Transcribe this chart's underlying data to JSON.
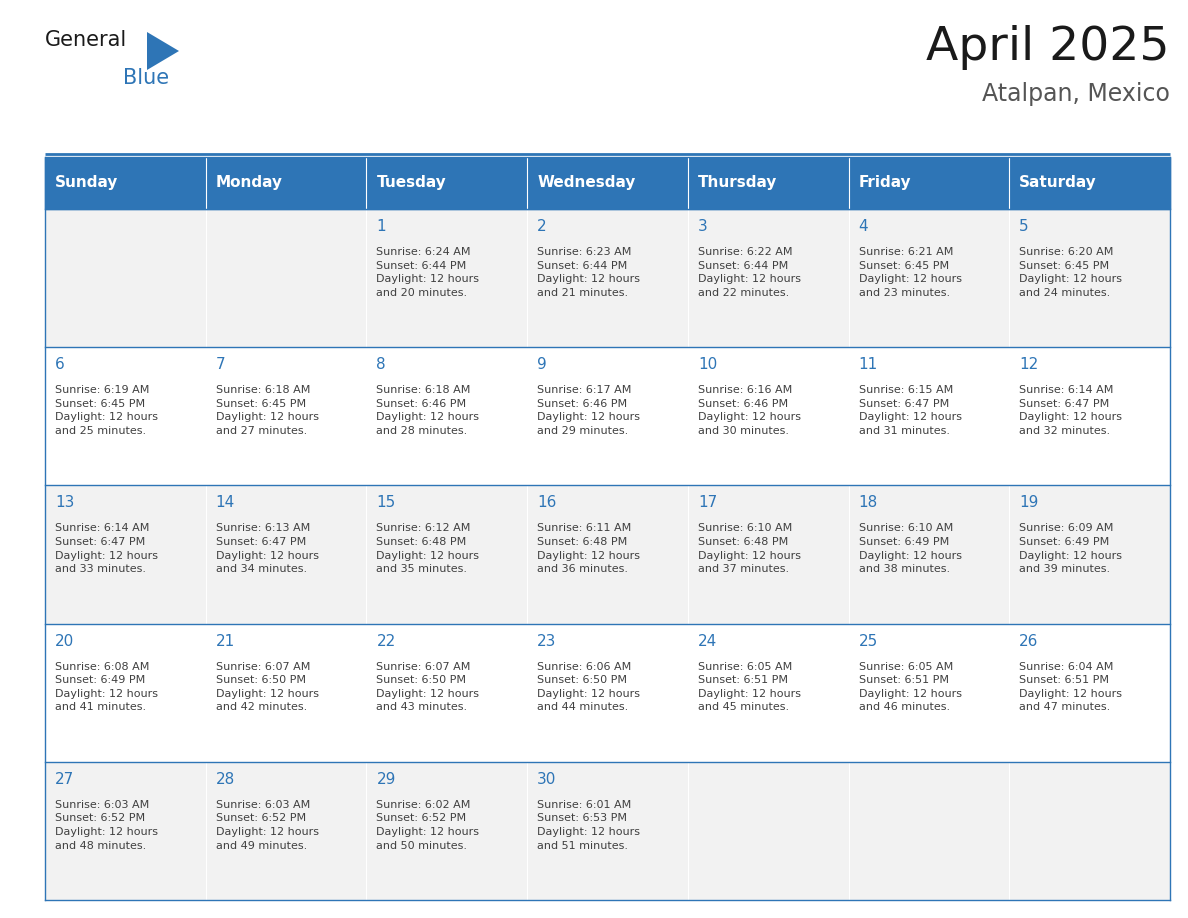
{
  "title": "April 2025",
  "subtitle": "Atalpan, Mexico",
  "days_of_week": [
    "Sunday",
    "Monday",
    "Tuesday",
    "Wednesday",
    "Thursday",
    "Friday",
    "Saturday"
  ],
  "header_bg": "#2E75B6",
  "header_text": "#FFFFFF",
  "row_bg_odd": "#F2F2F2",
  "row_bg_even": "#FFFFFF",
  "border_color": "#2E75B6",
  "text_color": "#404040",
  "day_number_color": "#2E75B6",
  "logo_color_general": "#1a1a1a",
  "logo_color_blue": "#2E75B6",
  "calendar_data": [
    [
      null,
      null,
      {
        "day": "1",
        "sunrise": "6:24 AM",
        "sunset": "6:44 PM",
        "daylight": "12 hours\nand 20 minutes."
      },
      {
        "day": "2",
        "sunrise": "6:23 AM",
        "sunset": "6:44 PM",
        "daylight": "12 hours\nand 21 minutes."
      },
      {
        "day": "3",
        "sunrise": "6:22 AM",
        "sunset": "6:44 PM",
        "daylight": "12 hours\nand 22 minutes."
      },
      {
        "day": "4",
        "sunrise": "6:21 AM",
        "sunset": "6:45 PM",
        "daylight": "12 hours\nand 23 minutes."
      },
      {
        "day": "5",
        "sunrise": "6:20 AM",
        "sunset": "6:45 PM",
        "daylight": "12 hours\nand 24 minutes."
      }
    ],
    [
      {
        "day": "6",
        "sunrise": "6:19 AM",
        "sunset": "6:45 PM",
        "daylight": "12 hours\nand 25 minutes."
      },
      {
        "day": "7",
        "sunrise": "6:18 AM",
        "sunset": "6:45 PM",
        "daylight": "12 hours\nand 27 minutes."
      },
      {
        "day": "8",
        "sunrise": "6:18 AM",
        "sunset": "6:46 PM",
        "daylight": "12 hours\nand 28 minutes."
      },
      {
        "day": "9",
        "sunrise": "6:17 AM",
        "sunset": "6:46 PM",
        "daylight": "12 hours\nand 29 minutes."
      },
      {
        "day": "10",
        "sunrise": "6:16 AM",
        "sunset": "6:46 PM",
        "daylight": "12 hours\nand 30 minutes."
      },
      {
        "day": "11",
        "sunrise": "6:15 AM",
        "sunset": "6:47 PM",
        "daylight": "12 hours\nand 31 minutes."
      },
      {
        "day": "12",
        "sunrise": "6:14 AM",
        "sunset": "6:47 PM",
        "daylight": "12 hours\nand 32 minutes."
      }
    ],
    [
      {
        "day": "13",
        "sunrise": "6:14 AM",
        "sunset": "6:47 PM",
        "daylight": "12 hours\nand 33 minutes."
      },
      {
        "day": "14",
        "sunrise": "6:13 AM",
        "sunset": "6:47 PM",
        "daylight": "12 hours\nand 34 minutes."
      },
      {
        "day": "15",
        "sunrise": "6:12 AM",
        "sunset": "6:48 PM",
        "daylight": "12 hours\nand 35 minutes."
      },
      {
        "day": "16",
        "sunrise": "6:11 AM",
        "sunset": "6:48 PM",
        "daylight": "12 hours\nand 36 minutes."
      },
      {
        "day": "17",
        "sunrise": "6:10 AM",
        "sunset": "6:48 PM",
        "daylight": "12 hours\nand 37 minutes."
      },
      {
        "day": "18",
        "sunrise": "6:10 AM",
        "sunset": "6:49 PM",
        "daylight": "12 hours\nand 38 minutes."
      },
      {
        "day": "19",
        "sunrise": "6:09 AM",
        "sunset": "6:49 PM",
        "daylight": "12 hours\nand 39 minutes."
      }
    ],
    [
      {
        "day": "20",
        "sunrise": "6:08 AM",
        "sunset": "6:49 PM",
        "daylight": "12 hours\nand 41 minutes."
      },
      {
        "day": "21",
        "sunrise": "6:07 AM",
        "sunset": "6:50 PM",
        "daylight": "12 hours\nand 42 minutes."
      },
      {
        "day": "22",
        "sunrise": "6:07 AM",
        "sunset": "6:50 PM",
        "daylight": "12 hours\nand 43 minutes."
      },
      {
        "day": "23",
        "sunrise": "6:06 AM",
        "sunset": "6:50 PM",
        "daylight": "12 hours\nand 44 minutes."
      },
      {
        "day": "24",
        "sunrise": "6:05 AM",
        "sunset": "6:51 PM",
        "daylight": "12 hours\nand 45 minutes."
      },
      {
        "day": "25",
        "sunrise": "6:05 AM",
        "sunset": "6:51 PM",
        "daylight": "12 hours\nand 46 minutes."
      },
      {
        "day": "26",
        "sunrise": "6:04 AM",
        "sunset": "6:51 PM",
        "daylight": "12 hours\nand 47 minutes."
      }
    ],
    [
      {
        "day": "27",
        "sunrise": "6:03 AM",
        "sunset": "6:52 PM",
        "daylight": "12 hours\nand 48 minutes."
      },
      {
        "day": "28",
        "sunrise": "6:03 AM",
        "sunset": "6:52 PM",
        "daylight": "12 hours\nand 49 minutes."
      },
      {
        "day": "29",
        "sunrise": "6:02 AM",
        "sunset": "6:52 PM",
        "daylight": "12 hours\nand 50 minutes."
      },
      {
        "day": "30",
        "sunrise": "6:01 AM",
        "sunset": "6:53 PM",
        "daylight": "12 hours\nand 51 minutes."
      },
      null,
      null,
      null
    ]
  ]
}
